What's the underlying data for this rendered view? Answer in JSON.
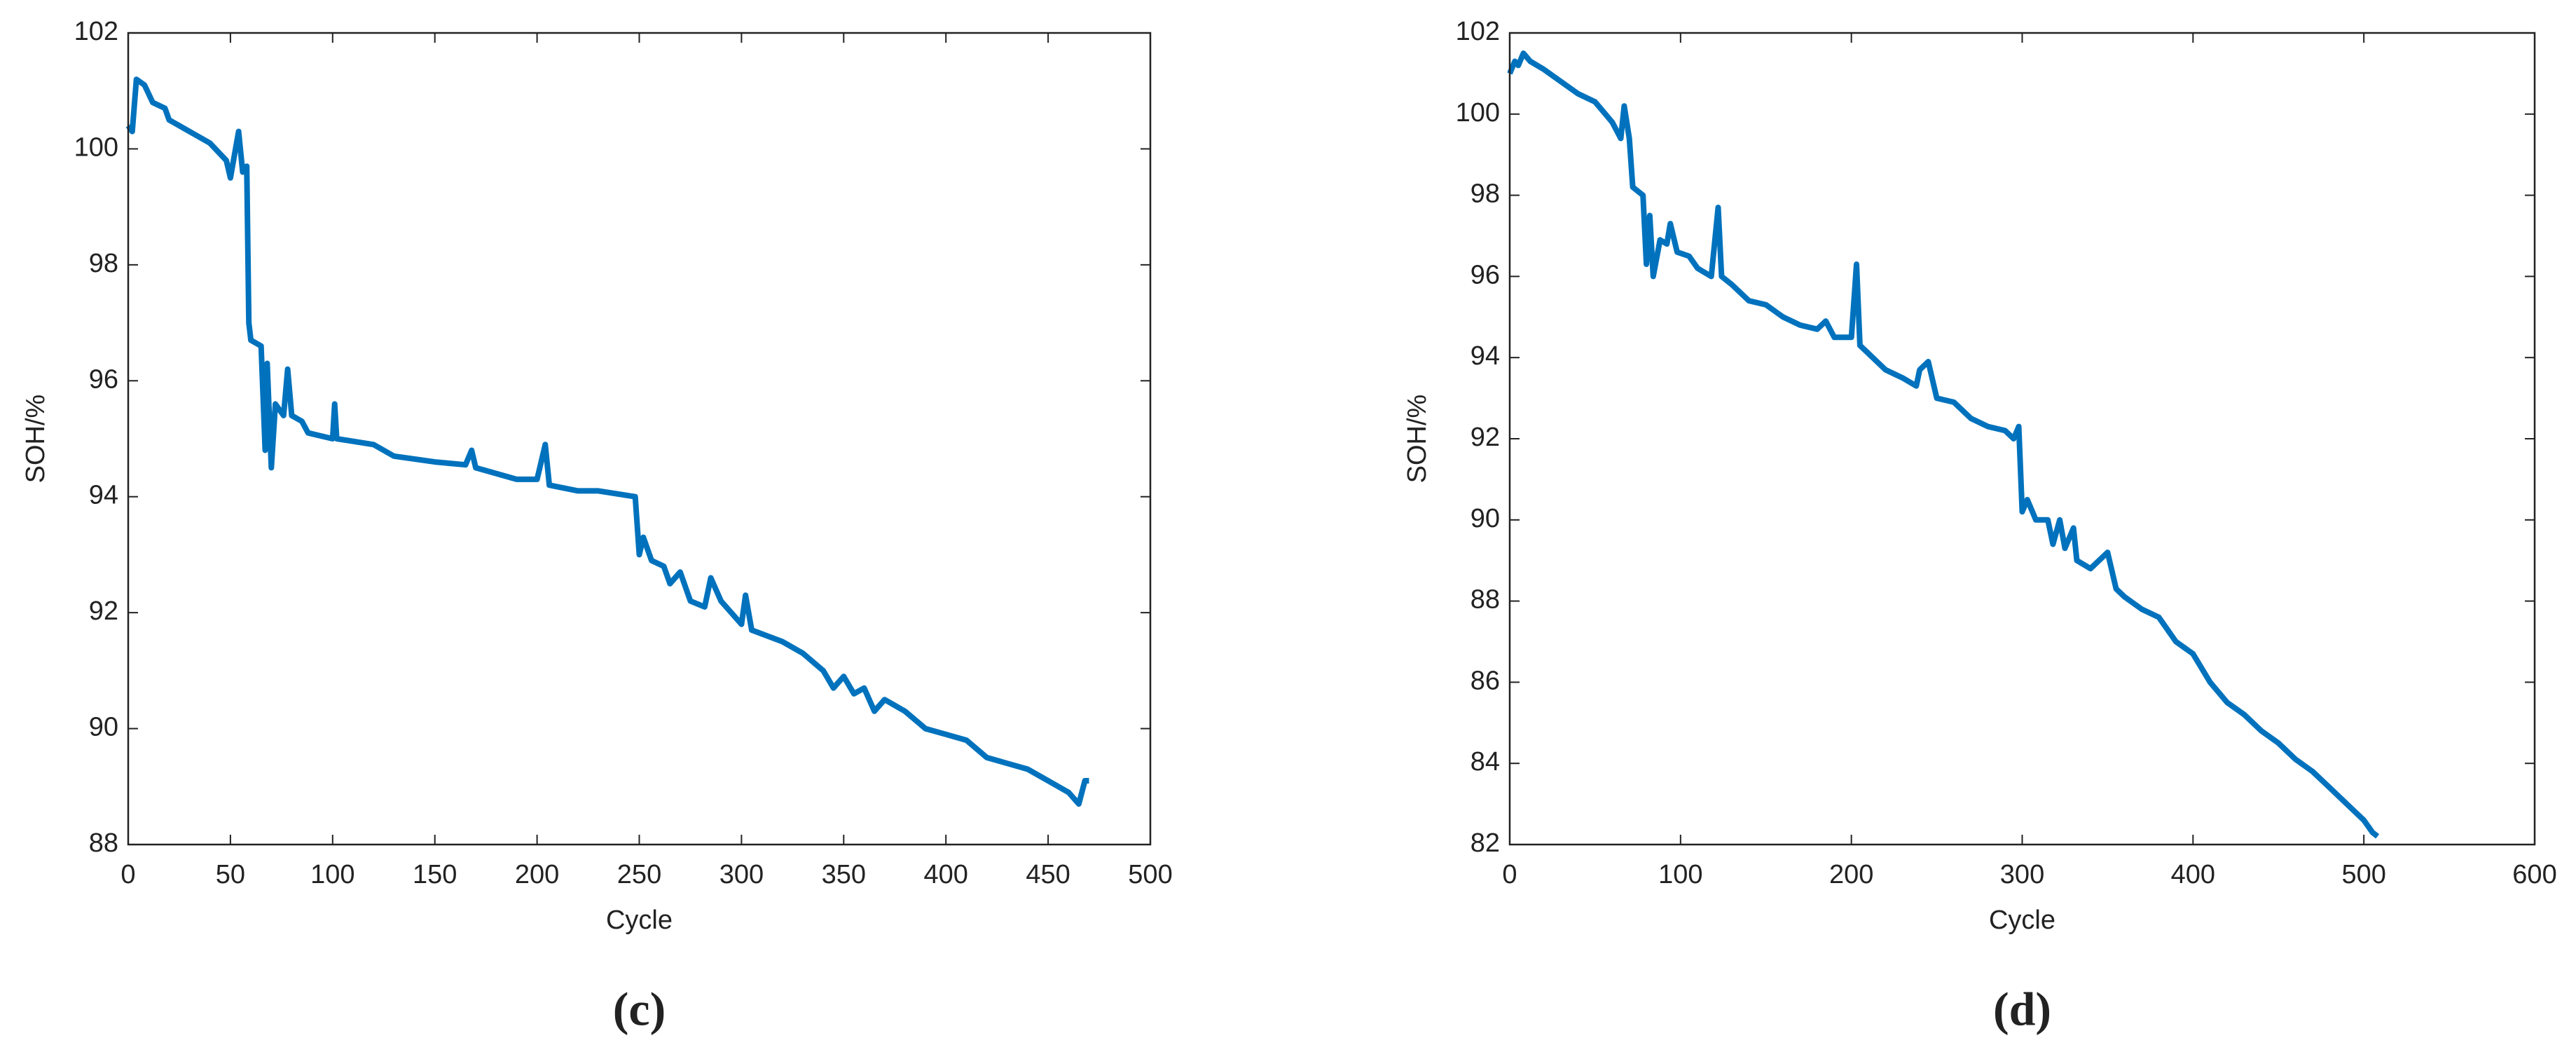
{
  "chart_data": [
    {
      "type": "line",
      "caption": "(c)",
      "x_label": "Cycle",
      "y_label": "SOH/%",
      "xlim": [
        0,
        500
      ],
      "xticks": [
        0,
        50,
        100,
        150,
        200,
        250,
        300,
        350,
        400,
        450,
        500
      ],
      "ylim": [
        88,
        102
      ],
      "yticks": [
        88,
        90,
        92,
        94,
        96,
        98,
        100,
        102
      ],
      "series": [
        {
          "color": "#0072bd",
          "x": [
            0,
            2,
            4,
            8,
            12,
            18,
            20,
            30,
            40,
            48,
            50,
            54,
            56,
            58,
            59,
            60,
            65,
            67,
            68,
            70,
            72,
            76,
            78,
            80,
            85,
            88,
            100,
            101,
            102,
            120,
            130,
            150,
            165,
            168,
            170,
            190,
            200,
            204,
            206,
            220,
            230,
            248,
            250,
            252,
            256,
            262,
            265,
            270,
            275,
            282,
            285,
            290,
            300,
            302,
            305,
            320,
            330,
            340,
            345,
            350,
            355,
            360,
            365,
            370,
            380,
            390,
            400,
            410,
            420,
            430,
            440,
            450,
            460,
            465,
            468,
            470
          ],
          "values": [
            100.4,
            100.3,
            101.2,
            101.1,
            100.8,
            100.7,
            100.5,
            100.3,
            100.1,
            99.8,
            99.5,
            100.3,
            99.6,
            99.7,
            97.0,
            96.7,
            96.6,
            94.8,
            96.3,
            94.5,
            95.6,
            95.4,
            96.2,
            95.4,
            95.3,
            95.1,
            95.0,
            95.6,
            95.0,
            94.9,
            94.7,
            94.6,
            94.55,
            94.8,
            94.5,
            94.3,
            94.3,
            94.9,
            94.2,
            94.1,
            94.1,
            94.0,
            93.0,
            93.3,
            92.9,
            92.8,
            92.5,
            92.7,
            92.2,
            92.1,
            92.6,
            92.2,
            91.8,
            92.3,
            91.7,
            91.5,
            91.3,
            91.0,
            90.7,
            90.9,
            90.6,
            90.7,
            90.3,
            90.5,
            90.3,
            90.0,
            89.9,
            89.8,
            89.5,
            89.4,
            89.3,
            89.1,
            88.9,
            88.7,
            89.1,
            89.1
          ]
        }
      ]
    },
    {
      "type": "line",
      "caption": "(d)",
      "x_label": "Cycle",
      "y_label": "SOH/%",
      "xlim": [
        0,
        600
      ],
      "xticks": [
        0,
        100,
        200,
        300,
        400,
        500,
        600
      ],
      "ylim": [
        82,
        102
      ],
      "yticks": [
        82,
        84,
        86,
        88,
        90,
        92,
        94,
        96,
        98,
        100,
        102
      ],
      "series": [
        {
          "color": "#0072bd",
          "x": [
            0,
            3,
            5,
            8,
            12,
            20,
            30,
            40,
            50,
            60,
            65,
            67,
            70,
            72,
            78,
            80,
            82,
            84,
            88,
            92,
            94,
            98,
            105,
            110,
            118,
            122,
            124,
            130,
            140,
            150,
            160,
            170,
            180,
            185,
            190,
            200,
            203,
            205,
            220,
            230,
            238,
            240,
            245,
            250,
            260,
            270,
            280,
            290,
            295,
            298,
            300,
            303,
            308,
            315,
            318,
            322,
            325,
            330,
            332,
            340,
            345,
            350,
            355,
            360,
            370,
            380,
            390,
            400,
            410,
            420,
            430,
            440,
            450,
            460,
            470,
            480,
            490,
            500,
            505,
            508
          ],
          "values": [
            101.0,
            101.3,
            101.2,
            101.5,
            101.3,
            101.1,
            100.8,
            100.5,
            100.3,
            99.8,
            99.4,
            100.2,
            99.4,
            98.2,
            98.0,
            96.3,
            97.5,
            96.0,
            96.9,
            96.8,
            97.3,
            96.6,
            96.5,
            96.2,
            96.0,
            97.7,
            96.0,
            95.8,
            95.4,
            95.3,
            95.0,
            94.8,
            94.7,
            94.9,
            94.5,
            94.5,
            96.3,
            94.3,
            93.7,
            93.5,
            93.3,
            93.7,
            93.9,
            93.0,
            92.9,
            92.5,
            92.3,
            92.2,
            92.0,
            92.3,
            90.2,
            90.5,
            90.0,
            90.0,
            89.4,
            90.0,
            89.3,
            89.8,
            89.0,
            88.8,
            89.0,
            89.2,
            88.3,
            88.1,
            87.8,
            87.6,
            87.0,
            86.7,
            86.0,
            85.5,
            85.2,
            84.8,
            84.5,
            84.1,
            83.8,
            83.4,
            83.0,
            82.6,
            82.3,
            82.2
          ]
        }
      ]
    }
  ]
}
